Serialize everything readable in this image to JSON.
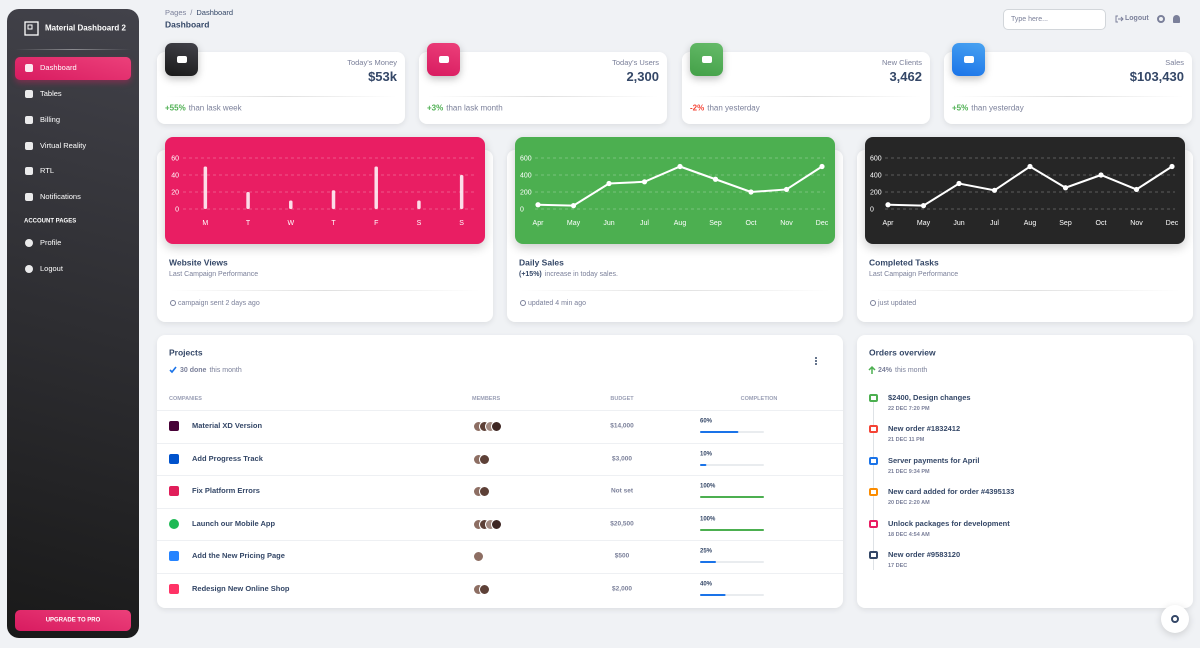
{
  "sidebar": {
    "brand": "Material Dashboard 2",
    "nav": [
      "Dashboard",
      "Tables",
      "Billing",
      "Virtual Reality",
      "RTL",
      "Notifications"
    ],
    "section": "ACCOUNT PAGES",
    "account_nav": [
      "Profile",
      "Logout"
    ],
    "upgrade": "UPGRADE TO PRO"
  },
  "header": {
    "breadcrumb": [
      "Pages",
      "/",
      "Dashboard"
    ],
    "title": "Dashboard",
    "search_placeholder": "Type here...",
    "logout": "Logout"
  },
  "stats": [
    {
      "label": "Today's Money",
      "value": "$53k",
      "change": "+55%",
      "note": "than lask week"
    },
    {
      "label": "Today's Users",
      "value": "2,300",
      "change": "+3%",
      "note": "than lask month"
    },
    {
      "label": "New Clients",
      "value": "3,462",
      "change": "-2%",
      "note": "than yesterday"
    },
    {
      "label": "Sales",
      "value": "$103,430",
      "change": "+5%",
      "note": "than yesterday"
    }
  ],
  "charts": [
    {
      "type": "bar",
      "title": "Website Views",
      "subtitle": "Last Campaign Performance",
      "footer": "campaign sent 2 days ago",
      "background": "#e91e63",
      "categories": [
        "M",
        "T",
        "W",
        "T",
        "F",
        "S",
        "S"
      ],
      "values": [
        50,
        20,
        10,
        22,
        50,
        10,
        40
      ],
      "ylim": [
        0,
        60
      ],
      "yticks": [
        0,
        20,
        40,
        60
      ]
    },
    {
      "type": "line",
      "title": "Daily Sales",
      "subtitle_highlight": "(+15%)",
      "subtitle": "increase in today sales.",
      "footer": "updated 4 min ago",
      "background": "#4caf50",
      "categories": [
        "Apr",
        "May",
        "Jun",
        "Jul",
        "Aug",
        "Sep",
        "Oct",
        "Nov",
        "Dec"
      ],
      "values": [
        50,
        40,
        300,
        320,
        500,
        350,
        200,
        230,
        500
      ],
      "ylim": [
        0,
        600
      ],
      "yticks": [
        0,
        200,
        400,
        600
      ]
    },
    {
      "type": "line",
      "title": "Completed Tasks",
      "subtitle": "Last Campaign Performance",
      "footer": "just updated",
      "background": "#262626",
      "categories": [
        "Apr",
        "May",
        "Jun",
        "Jul",
        "Aug",
        "Sep",
        "Oct",
        "Nov",
        "Dec"
      ],
      "values": [
        50,
        40,
        300,
        220,
        500,
        250,
        400,
        230,
        500
      ],
      "ylim": [
        0,
        600
      ],
      "yticks": [
        0,
        200,
        400,
        600
      ]
    }
  ],
  "projects": {
    "title": "Projects",
    "done": "30 done",
    "done_note": "this month",
    "columns": [
      "COMPANIES",
      "MEMBERS",
      "BUDGET",
      "COMPLETION"
    ],
    "rows": [
      {
        "company": "Material XD Version",
        "budget": "$14,000",
        "completion": 60,
        "completion_label": "60%"
      },
      {
        "company": "Add Progress Track",
        "budget": "$3,000",
        "completion": 10,
        "completion_label": "10%"
      },
      {
        "company": "Fix Platform Errors",
        "budget": "Not set",
        "completion": 100,
        "completion_label": "100%"
      },
      {
        "company": "Launch our Mobile App",
        "budget": "$20,500",
        "completion": 100,
        "completion_label": "100%"
      },
      {
        "company": "Add the New Pricing Page",
        "budget": "$500",
        "completion": 25,
        "completion_label": "25%"
      },
      {
        "company": "Redesign New Online Shop",
        "budget": "$2,000",
        "completion": 40,
        "completion_label": "40%"
      }
    ]
  },
  "orders": {
    "title": "Orders overview",
    "change": "24%",
    "change_note": "this month",
    "items": [
      {
        "title": "$2400, Design changes",
        "date": "22 DEC 7:20 PM"
      },
      {
        "title": "New order #1832412",
        "date": "21 DEC 11 PM"
      },
      {
        "title": "Server payments for April",
        "date": "21 DEC 9:34 PM"
      },
      {
        "title": "New card added for order #4395133",
        "date": "20 DEC 2:20 AM"
      },
      {
        "title": "Unlock packages for development",
        "date": "18 DEC 4:54 AM"
      },
      {
        "title": "New order #9583120",
        "date": "17 DEC"
      }
    ]
  }
}
